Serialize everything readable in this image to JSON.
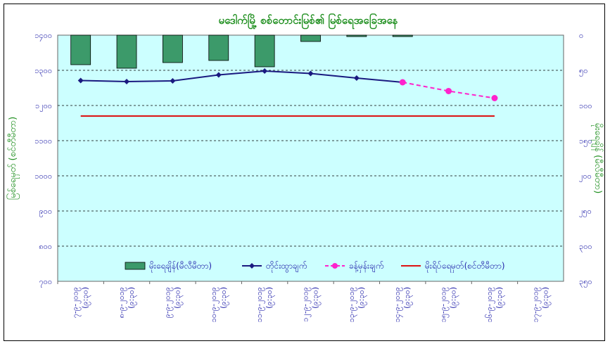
{
  "chart_data": {
    "type": "bar+line",
    "title": "မဒေါက်မြို့ စစ်တောင်းမြစ်၏ မြစ်ရေအခြေအနေ",
    "ylabel_left": "မြစ်ရေမှတ် (စင်တီမီတာ)",
    "ylabel_right": "မိုးရေချိန် (မီလီမီတာ)",
    "left_axis": {
      "min": 700,
      "max": 1400,
      "step": 100,
      "ticks": [
        "၇၀၀",
        "၈၀၀",
        "၉၀၀",
        "၁၀၀၀",
        "၁၁၀၀",
        "၁၂၀၀",
        "၁၃၀၀",
        "၁၄၀၀"
      ]
    },
    "right_axis": {
      "min": 0,
      "max": 350,
      "step": 50,
      "reversed": true,
      "ticks": [
        "၀",
        "၅၀",
        "၁၀၀",
        "၁၅၀",
        "၂၀၀",
        "၂၅၀",
        "၃၀၀",
        "၃၅၀"
      ]
    },
    "categories": [
      [
        "၇-၉-၂၀၁၉",
        "(၉:၃၀)"
      ],
      [
        "၈-၉-၂၀၁၉",
        "(၉:၃၀)"
      ],
      [
        "၉-၉-၂၀၁၉",
        "(၉:၃၀)"
      ],
      [
        "၁၀-၉-၂၀၁၉",
        "(၉:၃၀)"
      ],
      [
        "၁၁-၉-၂၀၁၉",
        "(၉:၃၀)"
      ],
      [
        "၁၂-၉-၂၀၁၉",
        "(၉:၃၀)"
      ],
      [
        "၁၃-၉-၂၀၁၉",
        "(၉:၃၀)"
      ],
      [
        "၁၄-၉-၂၀၁၉",
        "(၉:၃၀)"
      ],
      [
        "၁၅-၉-၂၀၁၉",
        "(၉:၃၀)"
      ],
      [
        "၁၆-၉-၂၀၁၉",
        "(၉:၃၀)"
      ],
      [
        "၁၇-၉-၂၀၁၉",
        "(၉:၃၀)"
      ]
    ],
    "series": [
      {
        "name": "မိုးရေချိန်(မီလီမီတာ)",
        "kind": "bar",
        "axis": "right",
        "color": "#3c9a6a",
        "values": [
          42,
          47,
          39,
          36,
          45,
          9,
          2,
          2,
          null,
          null,
          null
        ]
      },
      {
        "name": "တိုင်းထွာချက်",
        "kind": "line",
        "axis": "left",
        "color": "#1a1a80",
        "marker": "diamond",
        "values": [
          1271,
          1268,
          1270,
          1287,
          1298,
          1291,
          1278,
          1266,
          null,
          null,
          null
        ]
      },
      {
        "name": "ခန့်မှန်းချက်",
        "kind": "line",
        "axis": "left",
        "color": "#ff22cc",
        "marker": "circle",
        "dashed": true,
        "values": [
          null,
          null,
          null,
          null,
          null,
          null,
          null,
          1266,
          1241,
          1221,
          null
        ]
      },
      {
        "name": "မိုးရိပ်ရေမှတ်(စင်တီမီတာ)",
        "kind": "line",
        "axis": "left",
        "color": "#dd1111",
        "values": [
          1170,
          1170,
          1170,
          1170,
          1170,
          1170,
          1170,
          1170,
          1170,
          1170,
          null
        ]
      }
    ],
    "grid": true,
    "legend": "bottom-inside",
    "plot_background": "#ccffff"
  }
}
